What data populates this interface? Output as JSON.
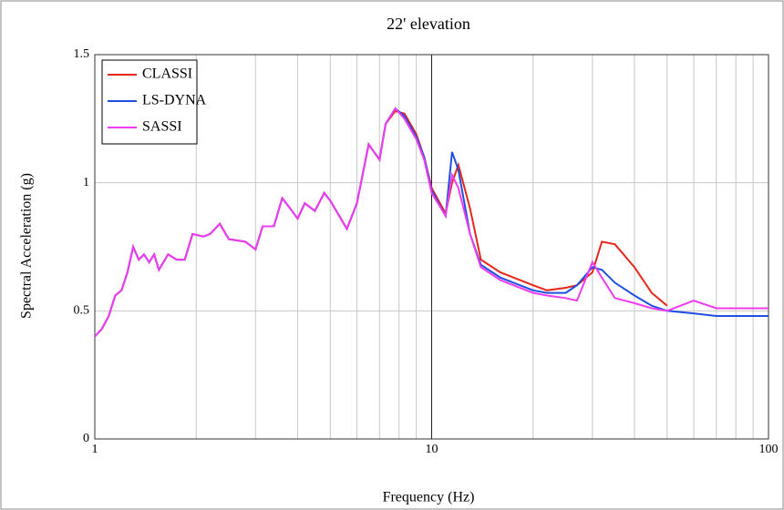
{
  "chart_data": {
    "type": "line",
    "title": "22' elevation",
    "x_label": "Frequency (Hz)",
    "y_label": "Spectral Acceleration (g)",
    "x_scale": "log",
    "grid": true,
    "legend": "top-left",
    "xlim": [
      1,
      100
    ],
    "xticks": [
      1,
      10,
      100
    ],
    "ylim": [
      0,
      1.5
    ],
    "yticks": [
      0,
      0.5,
      1,
      1.5
    ],
    "x": [
      1,
      1.05,
      1.1,
      1.15,
      1.2,
      1.25,
      1.3,
      1.35,
      1.4,
      1.45,
      1.5,
      1.55,
      1.65,
      1.75,
      1.85,
      1.95,
      2.1,
      2.2,
      2.35,
      2.5,
      2.8,
      3.0,
      3.15,
      3.4,
      3.6,
      3.8,
      4.0,
      4.2,
      4.5,
      4.8,
      5.0,
      5.6,
      6.0,
      6.5,
      7.0,
      7.3,
      7.8,
      8.3,
      9.0,
      9.5,
      10,
      11,
      11.5,
      12,
      13,
      14,
      16,
      20,
      22,
      25,
      27,
      30,
      32,
      35,
      40,
      45,
      50,
      60,
      70,
      100
    ],
    "series": [
      {
        "name": "CLASSI",
        "color": "#e8271c",
        "values": [
          0.4,
          0.43,
          0.48,
          0.56,
          0.58,
          0.65,
          0.75,
          0.7,
          0.72,
          0.69,
          0.72,
          0.66,
          0.72,
          0.7,
          0.7,
          0.8,
          0.79,
          0.8,
          0.84,
          0.78,
          0.77,
          0.74,
          0.83,
          0.83,
          0.94,
          0.9,
          0.86,
          0.92,
          0.89,
          0.96,
          0.93,
          0.82,
          0.92,
          1.15,
          1.09,
          1.23,
          1.28,
          1.27,
          1.19,
          1.1,
          0.98,
          0.88,
          1.0,
          1.07,
          0.9,
          0.7,
          0.65,
          0.6,
          0.58,
          0.59,
          0.6,
          0.65,
          0.77,
          0.76,
          0.67,
          0.57,
          0.52,
          null,
          null,
          null
        ]
      },
      {
        "name": "LS-DYNA",
        "color": "#1f4fe0",
        "values": [
          0.4,
          0.43,
          0.48,
          0.56,
          0.58,
          0.65,
          0.75,
          0.7,
          0.72,
          0.69,
          0.72,
          0.66,
          0.72,
          0.7,
          0.7,
          0.8,
          0.79,
          0.8,
          0.84,
          0.78,
          0.77,
          0.74,
          0.83,
          0.83,
          0.94,
          0.9,
          0.86,
          0.92,
          0.89,
          0.96,
          0.93,
          0.82,
          0.92,
          1.15,
          1.09,
          1.23,
          1.29,
          1.26,
          1.18,
          1.1,
          0.97,
          0.87,
          1.12,
          1.05,
          0.8,
          0.68,
          0.63,
          0.58,
          0.57,
          0.57,
          0.6,
          0.67,
          0.66,
          0.61,
          0.56,
          0.52,
          0.5,
          0.49,
          0.48,
          0.48
        ]
      },
      {
        "name": "SASSI",
        "color": "#f03cf0",
        "values": [
          0.4,
          0.43,
          0.48,
          0.56,
          0.58,
          0.65,
          0.75,
          0.7,
          0.72,
          0.69,
          0.72,
          0.66,
          0.72,
          0.7,
          0.7,
          0.8,
          0.79,
          0.8,
          0.84,
          0.78,
          0.77,
          0.74,
          0.83,
          0.83,
          0.94,
          0.9,
          0.86,
          0.92,
          0.89,
          0.96,
          0.93,
          0.82,
          0.92,
          1.15,
          1.09,
          1.23,
          1.29,
          1.25,
          1.17,
          1.09,
          0.96,
          0.87,
          1.03,
          0.98,
          0.8,
          0.67,
          0.62,
          0.57,
          0.56,
          0.55,
          0.54,
          0.69,
          0.63,
          0.55,
          0.53,
          0.51,
          0.5,
          0.54,
          0.51,
          0.51
        ]
      }
    ]
  }
}
